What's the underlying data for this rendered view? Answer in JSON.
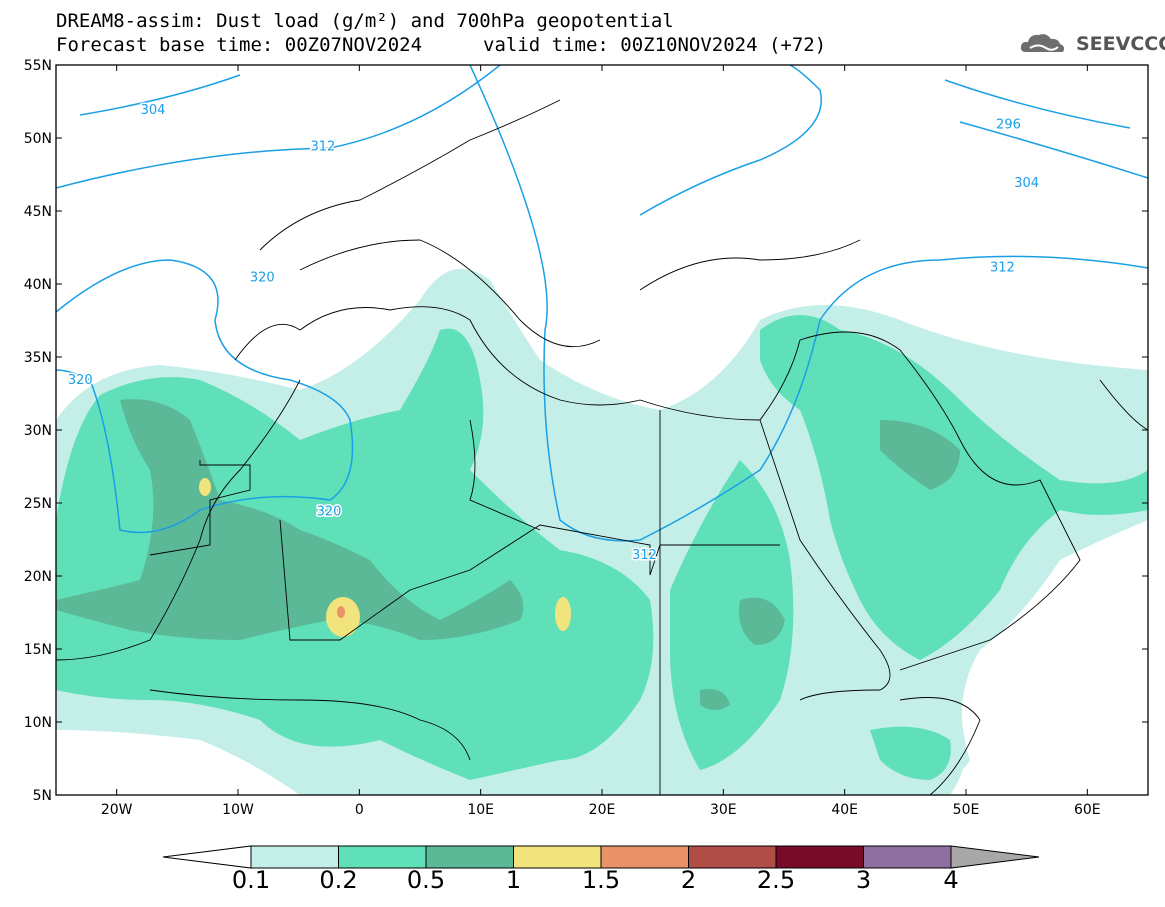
{
  "title": {
    "line1": "DREAM8-assim: Dust load (g/m²) and 700hPa geopotential",
    "line2_left": "Forecast base time: 00Z07NOV2024",
    "line2_right": "valid time: 00Z10NOV2024 (+72)"
  },
  "logo": {
    "text": "SEEVCCC",
    "icon": "cloud-icon"
  },
  "axes": {
    "lon_labels": [
      "20W",
      "10W",
      "0",
      "10E",
      "20E",
      "30E",
      "40E",
      "50E",
      "60E"
    ],
    "lon_values": [
      -20,
      -10,
      0,
      10,
      20,
      30,
      40,
      50,
      60
    ],
    "lat_labels": [
      "55N",
      "50N",
      "45N",
      "40N",
      "35N",
      "30N",
      "25N",
      "20N",
      "15N",
      "10N",
      "5N"
    ],
    "lat_values": [
      55,
      50,
      45,
      40,
      35,
      30,
      25,
      20,
      15,
      10,
      5
    ],
    "lon_range": [
      -25,
      65
    ],
    "lat_range": [
      5,
      55
    ]
  },
  "contours": {
    "labels": [
      "304",
      "312",
      "320",
      "320",
      "320",
      "312",
      "296",
      "304",
      "312"
    ]
  },
  "colorbar": {
    "levels": [
      "0.1",
      "0.2",
      "0.5",
      "1",
      "1.5",
      "2",
      "2.5",
      "3",
      "4"
    ],
    "colors": [
      "#c4efe8",
      "#5fe0b9",
      "#5cb998",
      "#f2e47c",
      "#ea9268",
      "#b14d47",
      "#790b2a",
      "#8f6f9f"
    ],
    "under_color": "#ffffff",
    "over_color": "#a8a8a8"
  }
}
